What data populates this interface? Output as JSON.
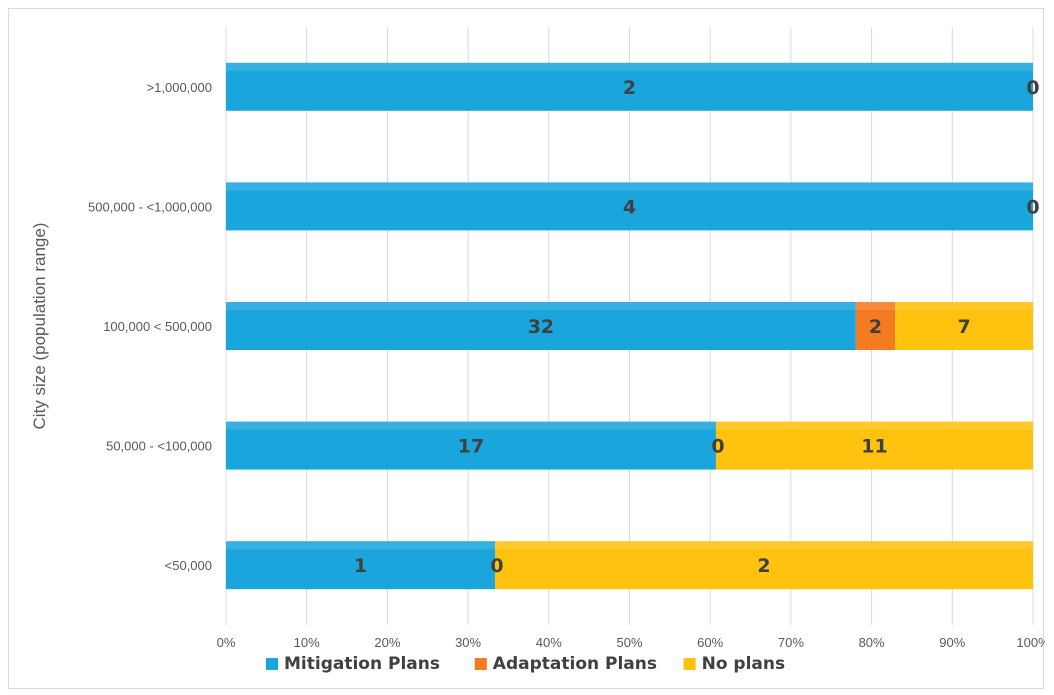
{
  "chart_data": {
    "type": "bar",
    "orientation": "horizontal",
    "stacked": "percent",
    "title": "",
    "xlabel": "",
    "ylabel": "City size (population range)",
    "categories": [
      ">1,000,000",
      "500,000 - <1,000,000",
      "100,000 < 500,000",
      "50,000 - <100,000",
      "<50,000"
    ],
    "series": [
      {
        "name": "Mitigation Plans",
        "color": "#1aa6dc",
        "values": [
          2,
          4,
          32,
          17,
          1
        ]
      },
      {
        "name": "Adaptation Plans",
        "color": "#f47b20",
        "values": [
          0,
          0,
          2,
          0,
          0
        ]
      },
      {
        "name": "No plans",
        "color": "#ffc20e",
        "values": [
          0,
          0,
          7,
          11,
          2
        ]
      }
    ],
    "data_labels": [
      [
        "2",
        "",
        ""
      ],
      [
        "4",
        "",
        ""
      ],
      [
        "32",
        "2",
        "7"
      ],
      [
        "17",
        "0",
        "11"
      ],
      [
        "1",
        "0",
        "2"
      ]
    ],
    "end_labels": [
      "0",
      "0",
      "",
      "",
      ""
    ],
    "xlim": [
      0,
      100
    ],
    "xticks": [
      "0%",
      "10%",
      "20%",
      "30%",
      "40%",
      "50%",
      "60%",
      "70%",
      "80%",
      "90%",
      "100%"
    ],
    "grid": true,
    "legend_position": "bottom"
  }
}
